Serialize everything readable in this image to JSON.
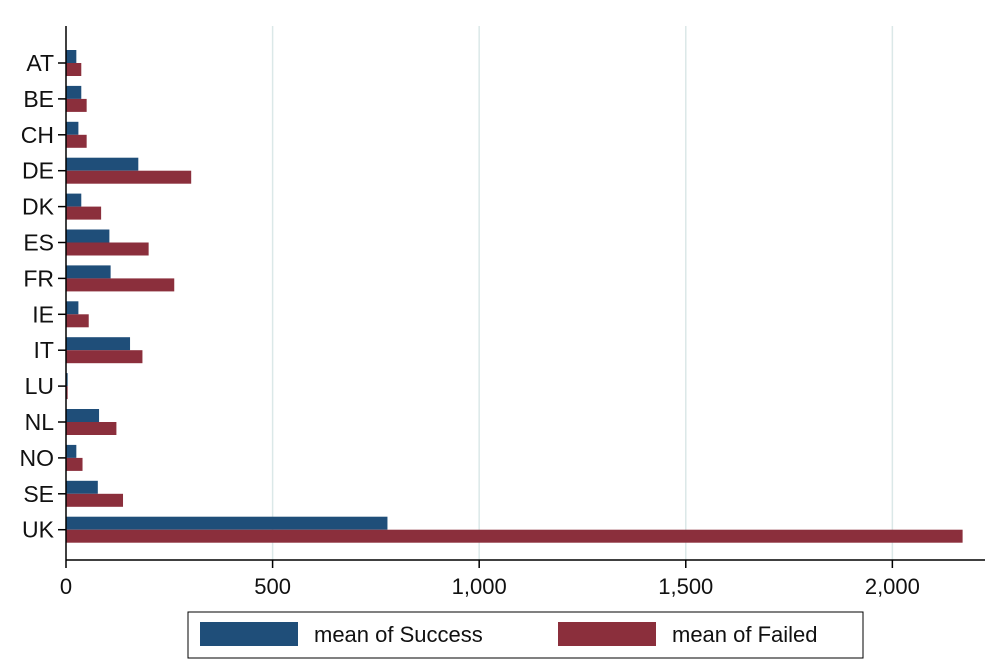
{
  "chart_data": {
    "type": "bar",
    "orientation": "horizontal",
    "categories": [
      "AT",
      "BE",
      "CH",
      "DE",
      "DK",
      "ES",
      "FR",
      "IE",
      "IT",
      "LU",
      "NL",
      "NO",
      "SE",
      "UK"
    ],
    "series": [
      {
        "name": "mean of Success",
        "color": "#1f4e79",
        "values": [
          25,
          37,
          30,
          175,
          37,
          105,
          108,
          30,
          155,
          4,
          80,
          25,
          77,
          778
        ]
      },
      {
        "name": "mean of Failed",
        "color": "#8b2f3c",
        "values": [
          37,
          50,
          50,
          303,
          85,
          200,
          262,
          55,
          185,
          4,
          122,
          40,
          138,
          2170
        ]
      }
    ],
    "x_ticks": [
      0,
      500,
      1000,
      1500,
      2000
    ],
    "x_tick_labels": [
      "0",
      "500",
      "1,000",
      "1,500",
      "2,000"
    ],
    "xlim": [
      0,
      2240
    ],
    "grid": "vertical",
    "legend": "bottom"
  }
}
